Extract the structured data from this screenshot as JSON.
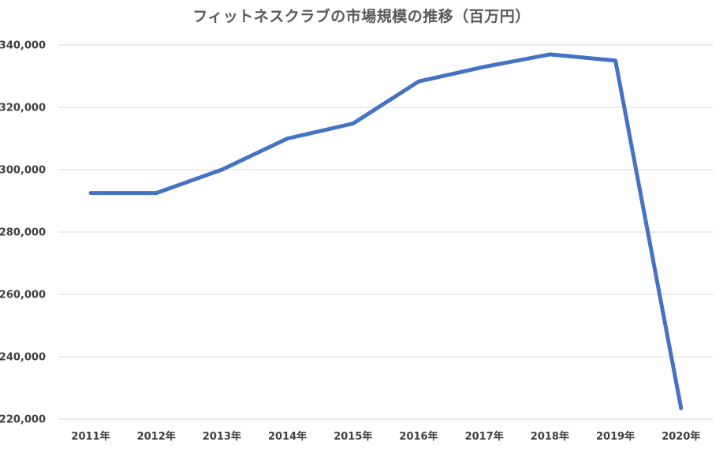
{
  "chart_data": {
    "type": "line",
    "title": "フィットネスクラブの市場規模の推移（百万円）",
    "xlabel": "",
    "ylabel": "",
    "categories": [
      "2011年",
      "2012年",
      "2013年",
      "2014年",
      "2015年",
      "2016年",
      "2017年",
      "2018年",
      "2019年",
      "2020年"
    ],
    "series": [
      {
        "values": [
          292500,
          292500,
          300000,
          310000,
          314800,
          328300,
          333000,
          337000,
          335000,
          223500
        ],
        "color": "#4472c4"
      }
    ],
    "ylim": [
      220000,
      340000
    ],
    "yticks": [
      220000,
      240000,
      260000,
      280000,
      300000,
      320000,
      340000
    ],
    "ytick_labels": [
      "220,000",
      "240,000",
      "260,000",
      "280,000",
      "300,000",
      "320,000",
      "340,000"
    ],
    "grid": true,
    "legend": "none"
  }
}
